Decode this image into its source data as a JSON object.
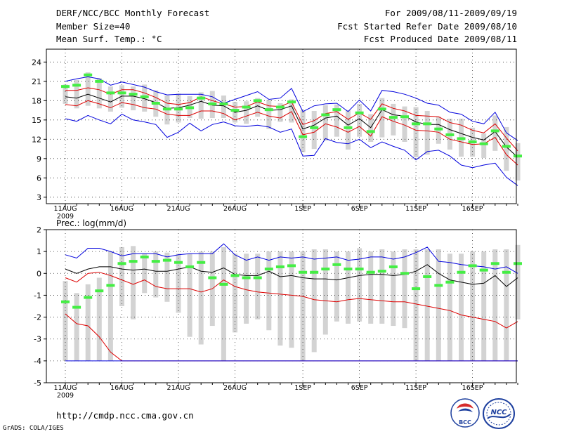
{
  "header": {
    "title": "DERF/NCC/BCC Monthly Forecast",
    "member_size": "Member Size=40",
    "variable": "Mean Surf. Temp.: °C",
    "period": "For 2009/08/11-2009/09/19",
    "start_date": "Fcst Started Refer Date 2009/08/10",
    "produced_date": "Fcst Produced Date 2009/08/11"
  },
  "footer": {
    "url": "http://cmdp.ncc.cma.gov.cn",
    "grads": "GrADS: COLA/IGES",
    "logo_bcc": "BCC",
    "logo_ncc": "NCC"
  },
  "colors": {
    "box": "#d3d3d3",
    "obs": "#44ee44",
    "mean": "#000000",
    "spread": "#dd0000",
    "envelope": "#0000dd",
    "grid": "#333333"
  },
  "chart_data": [
    {
      "type": "line",
      "title": "Mean Surf. Temp.: °C",
      "ylim": [
        2,
        26
      ],
      "yticks": [
        3,
        6,
        9,
        12,
        15,
        18,
        21,
        24
      ],
      "xlabels": [
        {
          "day": 0,
          "label": "11AUG"
        },
        {
          "day": 5,
          "label": "16AUG"
        },
        {
          "day": 10,
          "label": "21AUG"
        },
        {
          "day": 15,
          "label": "26AUG"
        },
        {
          "day": 21,
          "label": "1SEP"
        },
        {
          "day": 26,
          "label": "6SEP"
        },
        {
          "day": 31,
          "label": "11SEP"
        },
        {
          "day": 36,
          "label": "16SEP"
        }
      ],
      "year_label": "2009",
      "series": [
        {
          "name": "max",
          "color": "#0000dd",
          "values": [
            21.0,
            21.4,
            21.7,
            21.4,
            20.4,
            20.9,
            20.5,
            20.1,
            19.4,
            18.9,
            19.0,
            19.0,
            19.0,
            18.6,
            17.6,
            18.2,
            18.8,
            19.4,
            18.2,
            18.4,
            19.9,
            16.3,
            17.2,
            17.5,
            17.6,
            16.3,
            18.1,
            16.4,
            19.6,
            19.4,
            19.0,
            18.4,
            17.6,
            17.3,
            16.2,
            15.9,
            14.8,
            14.4,
            16.2,
            13.0,
            11.8
          ]
        },
        {
          "name": "upper",
          "color": "#dd0000",
          "values": [
            19.6,
            19.6,
            20.0,
            19.7,
            19.0,
            19.7,
            19.7,
            19.2,
            18.5,
            17.6,
            17.4,
            17.7,
            18.6,
            18.0,
            17.5,
            17.0,
            17.1,
            17.8,
            17.2,
            17.1,
            17.8,
            14.3,
            14.9,
            16.0,
            16.3,
            15.1,
            16.1,
            15.1,
            17.5,
            16.8,
            16.4,
            15.7,
            15.6,
            15.5,
            14.6,
            14.2,
            13.4,
            13.0,
            14.4,
            12.2,
            10.2
          ]
        },
        {
          "name": "mean",
          "color": "#000000",
          "values": [
            18.6,
            18.4,
            19.0,
            18.4,
            17.8,
            18.7,
            18.7,
            18.3,
            17.7,
            16.8,
            16.9,
            17.3,
            17.9,
            17.3,
            17.2,
            16.2,
            16.5,
            17.2,
            16.5,
            16.6,
            17.2,
            13.6,
            14.2,
            15.3,
            15.6,
            14.2,
            15.2,
            13.8,
            16.6,
            15.8,
            15.6,
            14.7,
            14.3,
            14.3,
            13.5,
            12.9,
            12.3,
            11.9,
            13.2,
            10.8,
            9.2
          ]
        },
        {
          "name": "lower",
          "color": "#dd0000",
          "values": [
            17.4,
            17.2,
            18.0,
            17.5,
            16.9,
            17.7,
            17.4,
            16.9,
            16.7,
            15.9,
            15.7,
            15.7,
            16.4,
            16.4,
            16.0,
            15.0,
            15.6,
            16.2,
            15.6,
            15.3,
            16.3,
            12.7,
            13.1,
            14.4,
            13.9,
            13.1,
            14.0,
            12.5,
            15.5,
            14.8,
            14.2,
            13.4,
            13.3,
            13.1,
            12.0,
            11.6,
            11.2,
            11.3,
            12.3,
            9.6,
            8.0
          ]
        },
        {
          "name": "min",
          "color": "#0000dd",
          "values": [
            15.2,
            14.8,
            15.7,
            15.0,
            14.4,
            15.9,
            15.0,
            14.7,
            14.3,
            12.3,
            13.1,
            14.5,
            13.3,
            14.3,
            14.7,
            14.1,
            14.0,
            14.2,
            13.9,
            13.1,
            13.6,
            9.4,
            9.5,
            12.1,
            11.5,
            11.3,
            12.0,
            10.7,
            11.6,
            10.9,
            10.3,
            8.8,
            10.1,
            10.3,
            9.4,
            8.0,
            7.6,
            8.0,
            8.3,
            6.1,
            4.8
          ]
        }
      ],
      "obs": [
        20.2,
        20.4,
        22.0,
        21.0,
        19.2,
        19.2,
        19.0,
        18.6,
        17.6,
        16.7,
        16.7,
        16.9,
        18.4,
        17.5,
        17.5,
        16.5,
        17.0,
        18.0,
        16.6,
        17.0,
        17.8,
        12.4,
        13.8,
        15.8,
        16.6,
        13.8,
        16.1,
        13.2,
        16.7,
        15.4,
        15.5,
        14.4,
        14.4,
        13.6,
        12.7,
        12.1,
        11.6,
        11.3,
        13.3,
        10.9,
        9.4
      ],
      "boxes": [
        [
          17.5,
          20.5
        ],
        [
          16.8,
          21.2
        ],
        [
          17.2,
          22.4
        ],
        [
          16.8,
          21.5
        ],
        [
          16.3,
          20.2
        ],
        [
          16.9,
          20.4
        ],
        [
          16.5,
          20.2
        ],
        [
          16.3,
          20.5
        ],
        [
          15.5,
          19.6
        ],
        [
          14.3,
          18.8
        ],
        [
          14.6,
          19.1
        ],
        [
          15.3,
          18.7
        ],
        [
          15.2,
          19.3
        ],
        [
          15.3,
          19.5
        ],
        [
          15.3,
          18.8
        ],
        [
          14.6,
          17.8
        ],
        [
          14.4,
          17.9
        ],
        [
          15.5,
          18.4
        ],
        [
          13.6,
          18.1
        ],
        [
          14.7,
          17.6
        ],
        [
          14.6,
          18.2
        ],
        [
          10.0,
          16.5
        ],
        [
          10.5,
          16.4
        ],
        [
          11.8,
          17.3
        ],
        [
          12.4,
          17.4
        ],
        [
          10.4,
          16.5
        ],
        [
          12.4,
          17.5
        ],
        [
          11.6,
          15.9
        ],
        [
          12.3,
          18.4
        ],
        [
          12.6,
          17.5
        ],
        [
          11.6,
          17.1
        ],
        [
          9.2,
          17.0
        ],
        [
          9.6,
          16.4
        ],
        [
          11.3,
          15.5
        ],
        [
          10.4,
          15.2
        ],
        [
          9.3,
          15.2
        ],
        [
          9.3,
          13.8
        ],
        [
          9.1,
          12.9
        ],
        [
          10.2,
          15.7
        ],
        [
          7.1,
          13.9
        ],
        [
          5.6,
          11.4
        ]
      ]
    },
    {
      "type": "line",
      "title": "Prec.: log(mm/d)",
      "ylim": [
        -5,
        2
      ],
      "yticks": [
        -5,
        -4,
        -3,
        -2,
        -1,
        0,
        1,
        2
      ],
      "xlabels": [
        {
          "day": 0,
          "label": "11AUG"
        },
        {
          "day": 5,
          "label": "16AUG"
        },
        {
          "day": 10,
          "label": "21AUG"
        },
        {
          "day": 15,
          "label": "26AUG"
        },
        {
          "day": 21,
          "label": "1SEP"
        },
        {
          "day": 26,
          "label": "6SEP"
        },
        {
          "day": 31,
          "label": "11SEP"
        },
        {
          "day": 36,
          "label": "16SEP"
        }
      ],
      "year_label": "2009",
      "series": [
        {
          "name": "max",
          "color": "#0000dd",
          "values": [
            0.85,
            0.7,
            1.15,
            1.15,
            1.0,
            0.8,
            0.9,
            0.9,
            0.9,
            0.75,
            0.85,
            0.9,
            0.9,
            0.9,
            1.35,
            0.85,
            0.6,
            0.75,
            0.6,
            0.75,
            0.7,
            0.75,
            0.65,
            0.7,
            0.75,
            0.6,
            0.65,
            0.75,
            0.75,
            0.65,
            0.75,
            0.95,
            1.2,
            0.55,
            0.5,
            0.4,
            0.35,
            0.3,
            0.2,
            0.3,
            0.0
          ]
        },
        {
          "name": "mean",
          "color": "#000000",
          "values": [
            0.2,
            0.0,
            0.2,
            0.3,
            0.3,
            0.2,
            0.15,
            0.2,
            0.1,
            0.1,
            0.2,
            0.3,
            0.1,
            0.05,
            0.25,
            -0.05,
            -0.1,
            -0.1,
            0.1,
            -0.15,
            -0.1,
            -0.2,
            -0.25,
            -0.25,
            -0.3,
            -0.2,
            -0.1,
            -0.05,
            -0.05,
            -0.1,
            -0.05,
            0.1,
            0.4,
            0.0,
            -0.3,
            -0.4,
            -0.5,
            -0.45,
            -0.1,
            -0.6,
            -0.2
          ]
        },
        {
          "name": "lower",
          "color": "#dd0000",
          "values": [
            -1.85,
            -2.3,
            -2.4,
            -2.9,
            -3.6,
            -4.0,
            -4.0,
            -4.0,
            -4.0,
            -4.0,
            -4.0,
            -4.0,
            -4.0,
            -4.0,
            -4.0,
            -4.0,
            -4.0,
            -4.0,
            -4.0,
            -4.0,
            -4.0,
            -4.0,
            -4.0,
            -4.0,
            -4.0,
            -4.0,
            -4.0,
            -4.0,
            -4.0,
            -4.0,
            -4.0,
            -4.0,
            -4.0,
            -4.0,
            -4.0,
            -4.0,
            -4.0,
            -4.0,
            -4.0,
            -4.0,
            -4.0
          ]
        },
        {
          "name": "upper",
          "color": "#dd0000",
          "values": [
            -0.2,
            -0.4,
            0.0,
            0.05,
            -0.1,
            -0.3,
            -0.5,
            -0.3,
            -0.6,
            -0.7,
            -0.7,
            -0.7,
            -0.85,
            -0.7,
            -0.3,
            -0.6,
            -0.75,
            -0.85,
            -0.9,
            -0.95,
            -1.0,
            -1.05,
            -1.2,
            -1.25,
            -1.3,
            -1.2,
            -1.15,
            -1.2,
            -1.25,
            -1.3,
            -1.3,
            -1.4,
            -1.5,
            -1.6,
            -1.7,
            -1.9,
            -2.0,
            -2.1,
            -2.2,
            -2.5,
            -2.2
          ]
        },
        {
          "name": "min",
          "color": "#0000dd",
          "values": [
            -4.0,
            -4.0,
            -4.0,
            -4.0,
            -4.0,
            -4.0,
            -4.0,
            -4.0,
            -4.0,
            -4.0,
            -4.0,
            -4.0,
            -4.0,
            -4.0,
            -4.0,
            -4.0,
            -4.0,
            -4.0,
            -4.0,
            -4.0,
            -4.0,
            -4.0,
            -4.0,
            -4.0,
            -4.0,
            -4.0,
            -4.0,
            -4.0,
            -4.0,
            -4.0,
            -4.0,
            -4.0,
            -4.0,
            -4.0,
            -4.0,
            -4.0,
            -4.0,
            -4.0,
            -4.0,
            -4.0,
            -4.0
          ]
        }
      ],
      "obs": [
        -1.3,
        -1.55,
        -1.1,
        -0.8,
        -0.55,
        0.45,
        0.55,
        0.75,
        0.55,
        0.6,
        0.5,
        0.3,
        0.5,
        -0.2,
        -0.5,
        -0.1,
        -0.2,
        -0.2,
        0.2,
        0.3,
        0.35,
        0.05,
        0.05,
        0.2,
        0.4,
        0.2,
        0.2,
        0.05,
        0.1,
        0.3,
        0.0,
        -0.7,
        -0.15,
        -0.55,
        -0.4,
        0.05,
        0.35,
        0.15,
        0.45,
        0.05,
        0.45
      ],
      "boxes": [
        [
          -4.0,
          -0.35
        ],
        [
          -4.0,
          -0.9
        ],
        [
          -4.0,
          -0.5
        ],
        [
          -4.0,
          -0.2
        ],
        [
          -4.0,
          1.0
        ],
        [
          -1.5,
          1.2
        ],
        [
          -2.1,
          1.25
        ],
        [
          -0.9,
          0.9
        ],
        [
          -1.1,
          1.0
        ],
        [
          -1.3,
          0.95
        ],
        [
          -1.8,
          0.9
        ],
        [
          -2.9,
          0.9
        ],
        [
          -3.25,
          1.0
        ],
        [
          -2.4,
          1.0
        ],
        [
          -4.0,
          1.2
        ],
        [
          -2.7,
          0.9
        ],
        [
          -2.3,
          0.9
        ],
        [
          -2.1,
          0.9
        ],
        [
          -2.6,
          1.0
        ],
        [
          -3.3,
          1.0
        ],
        [
          -3.4,
          1.0
        ],
        [
          -4.0,
          1.0
        ],
        [
          -3.6,
          1.1
        ],
        [
          -2.8,
          1.1
        ],
        [
          -2.2,
          1.0
        ],
        [
          -2.3,
          1.0
        ],
        [
          -2.2,
          1.15
        ],
        [
          -2.3,
          1.0
        ],
        [
          -2.3,
          1.1
        ],
        [
          -2.4,
          1.0
        ],
        [
          -2.5,
          1.1
        ],
        [
          -4.0,
          1.1
        ],
        [
          -4.0,
          1.1
        ],
        [
          -4.0,
          1.1
        ],
        [
          -4.0,
          0.9
        ],
        [
          -4.0,
          0.9
        ],
        [
          -4.0,
          1.0
        ],
        [
          -4.0,
          1.0
        ],
        [
          -4.0,
          1.1
        ],
        [
          -4.0,
          1.1
        ],
        [
          -2.1,
          1.3
        ]
      ]
    }
  ]
}
